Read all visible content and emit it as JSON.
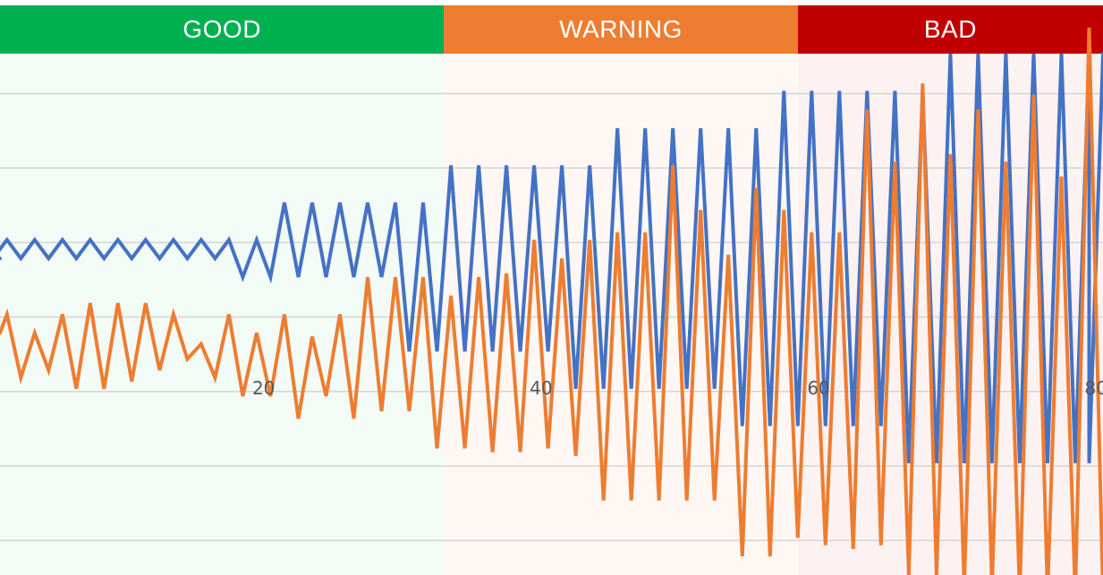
{
  "zones": [
    {
      "label": "GOOD",
      "x_start": 1,
      "x_end": 33,
      "color": "#00b050",
      "background": "#f3fbf6"
    },
    {
      "label": "WARNING",
      "x_start": 33,
      "x_end": 58.5,
      "color": "#ed7d31",
      "background": "#fef7f4"
    },
    {
      "label": "BAD",
      "x_start": 58.5,
      "x_end": 80.5,
      "color": "#c00000",
      "background": "#fdf2f2"
    }
  ],
  "chart_data": {
    "type": "line",
    "title": "",
    "xlabel": "",
    "ylabel": "",
    "xlim": [
      1,
      80.5
    ],
    "ylim": [
      -7,
      7
    ],
    "x_ticks": [
      20,
      40,
      60,
      80
    ],
    "y_gridlines": [
      -6,
      -4,
      -2,
      0,
      2,
      4,
      6
    ],
    "grid": true,
    "legend": "none",
    "series": [
      {
        "color": "#4472c4",
        "x": [
          1,
          1.5,
          3.5,
          5.5,
          7.5,
          9.5,
          11.5,
          13.5,
          15.5,
          17.5,
          19.5,
          21.5,
          23.5,
          25.5,
          27.5,
          29.5,
          31.5,
          33.5,
          35.5,
          37.5,
          39.5,
          41.5,
          43.5,
          45.5,
          47.5,
          49.5,
          51.5,
          53.5,
          55.5,
          57.5,
          59.5,
          61.5,
          63.5,
          65.5,
          67.5,
          69.5,
          71.5,
          73.5,
          75.5,
          77.5,
          79.5,
          80.5
        ],
        "y": [
          1.5,
          2,
          2,
          2,
          2,
          2,
          2,
          2,
          2,
          2,
          2,
          3,
          3,
          3,
          3,
          3,
          3,
          4,
          4,
          4,
          4,
          4,
          4,
          5,
          5,
          5,
          5,
          5,
          5,
          6,
          6,
          6,
          6,
          6,
          6,
          7,
          7,
          7,
          7,
          7,
          7,
          7
        ],
        "y_low": [
          1.5,
          1.5,
          1.5,
          1.5,
          1.5,
          1.5,
          1.5,
          1.5,
          1.5,
          1.5,
          1,
          1,
          1,
          1,
          1,
          1,
          -1,
          -1,
          -1,
          -1,
          -1,
          -1,
          -2,
          -2,
          -2,
          -2,
          -2,
          -2,
          -3,
          -3,
          -3,
          -3,
          -3,
          -3,
          -4,
          -4,
          -4,
          -4,
          -4,
          -4,
          -4,
          -4
        ]
      },
      {
        "color": "#ed7d31",
        "x": [
          1,
          1.5,
          2.5,
          3.5,
          4.5,
          5.5,
          6.5,
          7.5,
          8.5,
          9.5,
          10.5,
          11.5,
          12.5,
          13.5,
          14.5,
          15.5,
          16.5,
          17.5,
          18.5,
          19.5,
          20.5,
          21.5,
          22.5,
          23.5,
          24.5,
          25.5,
          26.5,
          27.5,
          28.5,
          29.5,
          30.5,
          31.5,
          32.5,
          33.5,
          34.5,
          35.5,
          36.5,
          37.5,
          38.5,
          39.5,
          40.5,
          41.5,
          42.5,
          43.5,
          44.5,
          45.5,
          46.5,
          47.5,
          48.5,
          49.5,
          50.5,
          51.5,
          52.5,
          53.5,
          54.5,
          55.5,
          56.5,
          57.5,
          58.5,
          59.5,
          60.5,
          61.5,
          62.5,
          63.5,
          64.5,
          65.5,
          66.5,
          67.5,
          68.5,
          69.5,
          70.5,
          71.5,
          72.5,
          73.5,
          74.5,
          75.5,
          76.5,
          77.5,
          78.5,
          79.5,
          80.5
        ],
        "y": [
          -0.5,
          0,
          -1.7,
          -0.5,
          -1.5,
          0,
          -2,
          0.3,
          -2,
          0.3,
          -1.8,
          0.3,
          -1.5,
          0,
          -1.2,
          -0.8,
          -1.7,
          0,
          -2.2,
          -0.5,
          -2.2,
          0,
          -2.8,
          -0.6,
          -2.2,
          0,
          -2.8,
          1,
          -2.6,
          1,
          -2.6,
          1,
          -3.6,
          0.5,
          -3.6,
          1,
          -3.7,
          1.1,
          -3.7,
          2,
          -3.6,
          1.5,
          -3.8,
          2,
          -5,
          2.2,
          -5,
          2.2,
          -5,
          4,
          -5,
          2.8,
          -5,
          1.6,
          -6.5,
          3.4,
          -6.5,
          2.8,
          -6,
          2.2,
          -6.2,
          2.2,
          -6.3,
          5.5,
          -6.2,
          4.1,
          -7,
          6.2,
          -7,
          4.3,
          -7.3,
          5.5,
          -7.3,
          4.1,
          -7.5,
          5.9,
          -7.5,
          3.7,
          -7.5,
          7.7,
          -7.5
        ]
      }
    ]
  }
}
